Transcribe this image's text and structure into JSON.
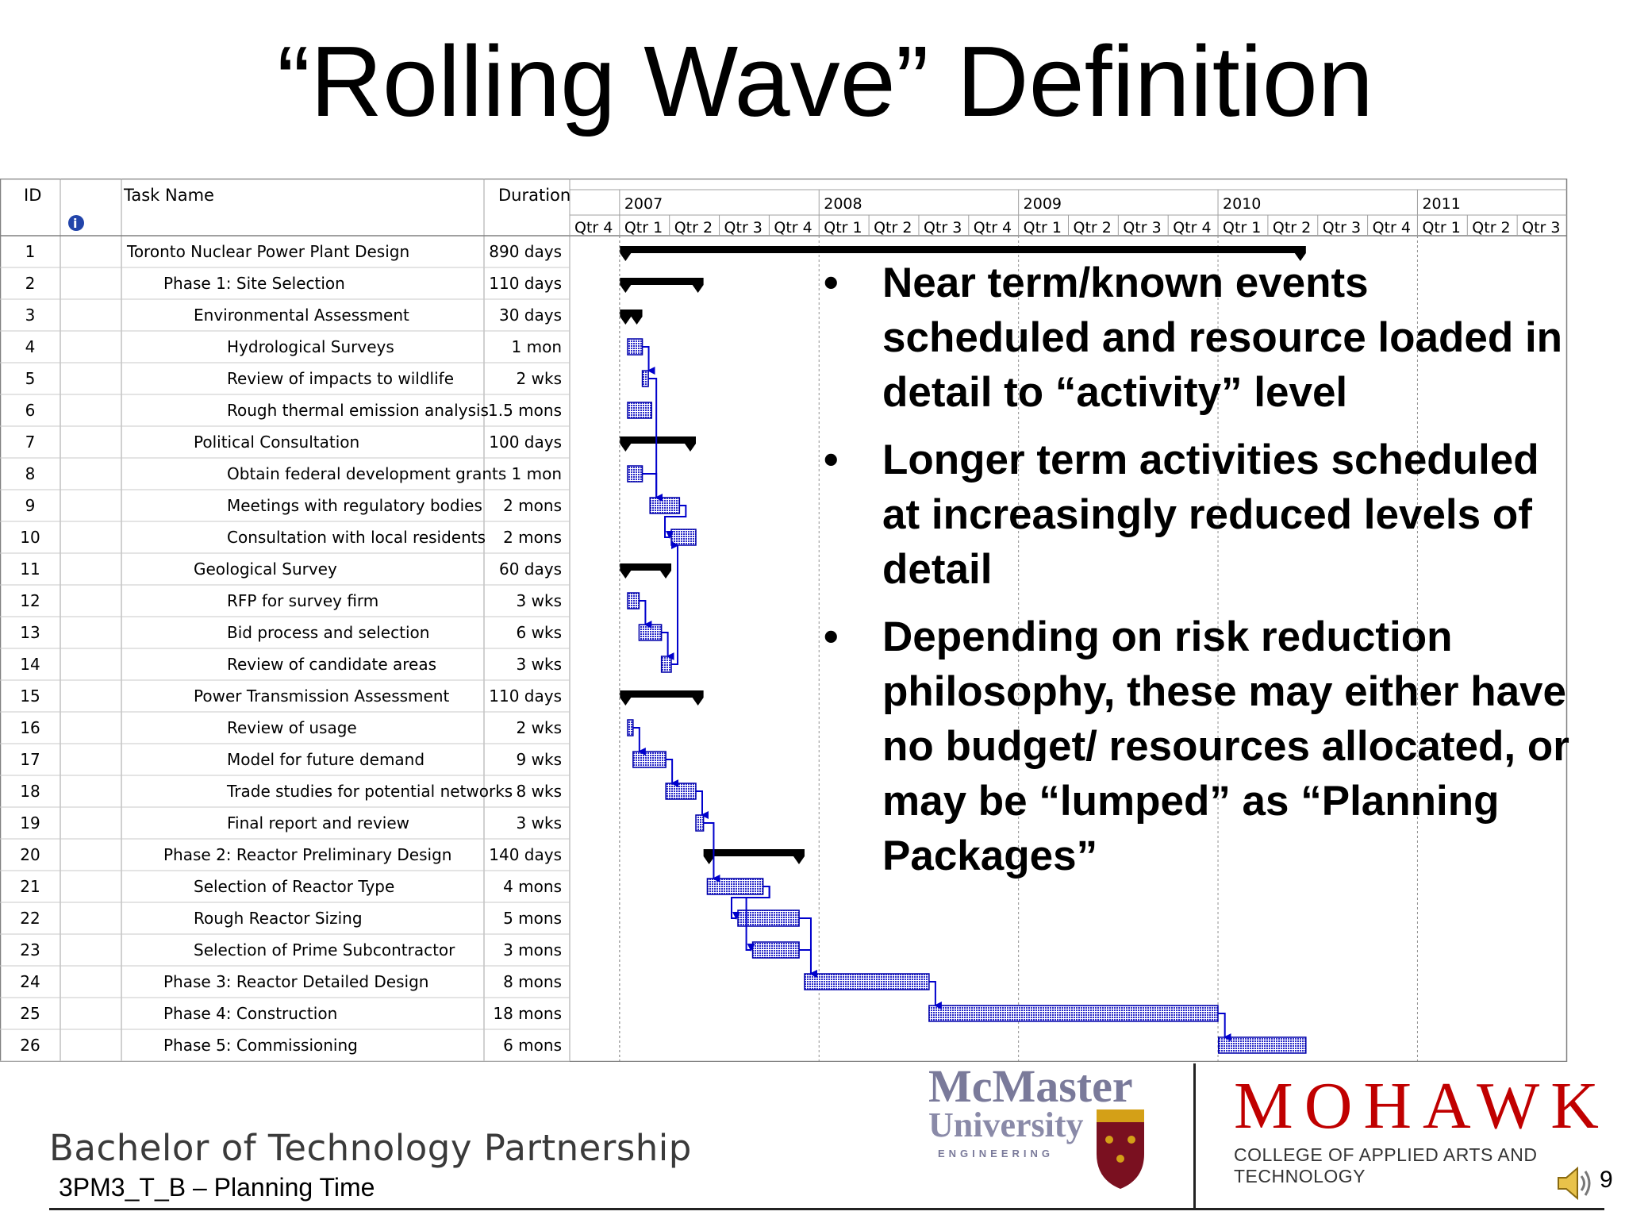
{
  "title": "“Rolling Wave” Definition",
  "table": {
    "headers": {
      "id": "ID",
      "task": "Task Name",
      "duration": "Duration"
    },
    "info_icon": "info-icon",
    "tasks": [
      {
        "id": "1",
        "name": "Toronto Nuclear Power Plant Design",
        "duration": "890 days",
        "level": 0,
        "type": "summary",
        "start": "2007-01-01",
        "end": "2010-06-10"
      },
      {
        "id": "2",
        "name": "Phase 1:  Site Selection",
        "duration": "110 days",
        "level": 1,
        "type": "summary",
        "start": "2007-01-01",
        "end": "2007-06-03"
      },
      {
        "id": "3",
        "name": "Environmental Assessment",
        "duration": "30 days",
        "level": 2,
        "type": "summary",
        "start": "2007-01-01",
        "end": "2007-02-11"
      },
      {
        "id": "4",
        "name": "Hydrological Surveys",
        "duration": "1 mon",
        "level": 3,
        "type": "task",
        "start": "2007-01-15",
        "end": "2007-02-11"
      },
      {
        "id": "5",
        "name": "Review of impacts to wildlife",
        "duration": "2 wks",
        "level": 3,
        "type": "task",
        "start": "2007-02-11",
        "end": "2007-02-22"
      },
      {
        "id": "6",
        "name": "Rough thermal emission analysis",
        "duration": "1.5 mons",
        "level": 3,
        "type": "task",
        "start": "2007-01-15",
        "end": "2007-02-28"
      },
      {
        "id": "7",
        "name": "Political Consultation",
        "duration": "100 days",
        "level": 2,
        "type": "summary",
        "start": "2007-01-01",
        "end": "2007-05-20"
      },
      {
        "id": "8",
        "name": "Obtain federal development grants",
        "duration": "1 mon",
        "level": 3,
        "type": "task",
        "start": "2007-01-15",
        "end": "2007-02-11"
      },
      {
        "id": "9",
        "name": "Meetings with regulatory bodies",
        "duration": "2 mons",
        "level": 3,
        "type": "task",
        "start": "2007-02-25",
        "end": "2007-04-20"
      },
      {
        "id": "10",
        "name": "Consultation with local residents",
        "duration": "2 mons",
        "level": 3,
        "type": "task",
        "start": "2007-04-05",
        "end": "2007-05-20"
      },
      {
        "id": "11",
        "name": "Geological Survey",
        "duration": "60 days",
        "level": 2,
        "type": "summary",
        "start": "2007-01-01",
        "end": "2007-04-05"
      },
      {
        "id": "12",
        "name": "RFP for survey firm",
        "duration": "3 wks",
        "level": 3,
        "type": "task",
        "start": "2007-01-15",
        "end": "2007-02-05"
      },
      {
        "id": "13",
        "name": "Bid process and selection",
        "duration": "6 wks",
        "level": 3,
        "type": "task",
        "start": "2007-02-05",
        "end": "2007-03-18"
      },
      {
        "id": "14",
        "name": "Review of candidate areas",
        "duration": "3 wks",
        "level": 3,
        "type": "task",
        "start": "2007-03-18",
        "end": "2007-04-05"
      },
      {
        "id": "15",
        "name": "Power Transmission Assessment",
        "duration": "110 days",
        "level": 2,
        "type": "summary",
        "start": "2007-01-01",
        "end": "2007-06-03"
      },
      {
        "id": "16",
        "name": "Review of usage",
        "duration": "2 wks",
        "level": 3,
        "type": "task",
        "start": "2007-01-15",
        "end": "2007-01-25"
      },
      {
        "id": "17",
        "name": "Model for future demand",
        "duration": "9 wks",
        "level": 3,
        "type": "task",
        "start": "2007-01-25",
        "end": "2007-03-26"
      },
      {
        "id": "18",
        "name": "Trade studies for potential networks",
        "duration": "8 wks",
        "level": 3,
        "type": "task",
        "start": "2007-03-26",
        "end": "2007-05-20"
      },
      {
        "id": "19",
        "name": "Final report and review",
        "duration": "3 wks",
        "level": 3,
        "type": "task",
        "start": "2007-05-20",
        "end": "2007-06-03"
      },
      {
        "id": "20",
        "name": "Phase 2:  Reactor Preliminary Design",
        "duration": "140 days",
        "level": 1,
        "type": "summary",
        "start": "2007-06-03",
        "end": "2007-12-05"
      },
      {
        "id": "21",
        "name": "Selection of Reactor Type",
        "duration": "4 mons",
        "level": 2,
        "type": "task",
        "start": "2007-06-10",
        "end": "2007-09-20"
      },
      {
        "id": "22",
        "name": "Rough Reactor Sizing",
        "duration": "5 mons",
        "level": 2,
        "type": "task",
        "start": "2007-08-05",
        "end": "2007-11-25"
      },
      {
        "id": "23",
        "name": "Selection of Prime Subcontractor",
        "duration": "3 mons",
        "level": 2,
        "type": "task",
        "start": "2007-09-01",
        "end": "2007-11-25"
      },
      {
        "id": "24",
        "name": "Phase 3:  Reactor Detailed Design",
        "duration": "8 mons",
        "level": 1,
        "type": "task",
        "start": "2007-12-05",
        "end": "2008-07-20"
      },
      {
        "id": "25",
        "name": "Phase 4:  Construction",
        "duration": "18 mons",
        "level": 1,
        "type": "task",
        "start": "2008-07-20",
        "end": "2009-12-31"
      },
      {
        "id": "26",
        "name": "Phase 5:  Commissioning",
        "duration": "6 mons",
        "level": 1,
        "type": "task",
        "start": "2010-01-01",
        "end": "2010-06-10"
      }
    ],
    "links": [
      [
        "4",
        "5"
      ],
      [
        "5",
        "9"
      ],
      [
        "8",
        "9"
      ],
      [
        "9",
        "10"
      ],
      [
        "12",
        "13"
      ],
      [
        "13",
        "14"
      ],
      [
        "14",
        "10"
      ],
      [
        "16",
        "17"
      ],
      [
        "17",
        "18"
      ],
      [
        "18",
        "19"
      ],
      [
        "19",
        "21"
      ],
      [
        "21",
        "22"
      ],
      [
        "21",
        "23"
      ],
      [
        "22",
        "24"
      ],
      [
        "23",
        "24"
      ],
      [
        "24",
        "25"
      ],
      [
        "25",
        "26"
      ]
    ]
  },
  "timescale": {
    "years": [
      "2007",
      "2008",
      "2009",
      "2010",
      "2011"
    ],
    "quarters": [
      "Qtr 4",
      "Qtr 1",
      "Qtr 2",
      "Qtr 3",
      "Qtr 4",
      "Qtr 1",
      "Qtr 2",
      "Qtr 3",
      "Qtr 4",
      "Qtr 1",
      "Qtr 2",
      "Qtr 3",
      "Qtr 4",
      "Qtr 1",
      "Qtr 2",
      "Qtr 3",
      "Qtr 4",
      "Qtr 1",
      "Qtr 2",
      "Qtr 3"
    ]
  },
  "bullets": [
    "Near term/known events scheduled and resource loaded in detail to “activity” level",
    "Longer term activities scheduled at increasingly reduced levels of detail",
    "Depending on risk reduction philosophy, these may either have no budget/ resources allocated, or may be “lumped” as “Planning Packages”"
  ],
  "bullet_glyph": "•",
  "footer": {
    "program": "Bachelor of Technology Partnership",
    "course": "3PM3_T_B – Planning Time",
    "page": "9",
    "logo1_line1": "McMaster",
    "logo1_line2": "University",
    "logo1_line3": "ENGINEERING",
    "logo2_big": "MOHAWK",
    "logo2_small": "COLLEGE OF APPLIED ARTS AND TECHNOLOGY",
    "speaker_icon": "speaker-icon"
  },
  "colors": {
    "bar": "#3333cc",
    "summary": "#000000",
    "grid": "#c0c0c0",
    "logo_red": "#c00000",
    "mcmaster": "#7a7a9a"
  }
}
